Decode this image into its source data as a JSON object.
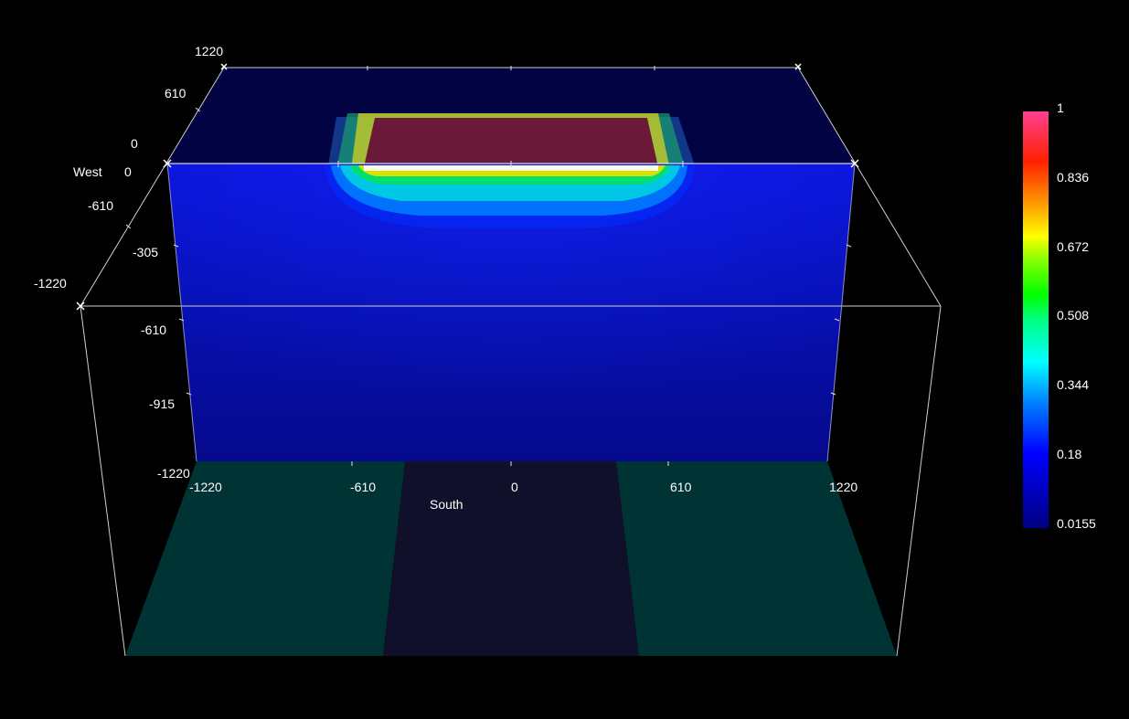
{
  "chart_data": {
    "type": "heatmap",
    "render": "3d-volume",
    "axes": {
      "south": {
        "label": "South",
        "ticks": [
          "-1220",
          "-610",
          "0",
          "610",
          "1220"
        ],
        "range": [
          -1220,
          1220
        ]
      },
      "west": {
        "label": "West",
        "ticks": [
          "1220",
          "610",
          "0",
          "-610",
          "-1220"
        ],
        "range": [
          -1220,
          1220
        ]
      },
      "depth": {
        "ticks": [
          "0",
          "-305",
          "-610",
          "-915",
          "-1220"
        ],
        "range": [
          -1220,
          0
        ]
      }
    },
    "colorbar": {
      "min": 0.0155,
      "max": 1,
      "ticks": [
        "1",
        "0.836",
        "0.672",
        "0.508",
        "0.344",
        "0.18",
        "0.0155"
      ],
      "colors": [
        "#000080",
        "#0000ff",
        "#0080ff",
        "#00ffff",
        "#00ff80",
        "#00ff00",
        "#80ff00",
        "#ffff00",
        "#ff8000",
        "#ff2000",
        "#ff4090"
      ]
    },
    "colors": {
      "background": "#000000",
      "axis_lines": "#cfcfcf",
      "floor": "#003333",
      "floor_center": "#10102a",
      "slab": "#0a10c0",
      "slab_top": "#020340",
      "hot_region": "#6a1a38"
    }
  }
}
